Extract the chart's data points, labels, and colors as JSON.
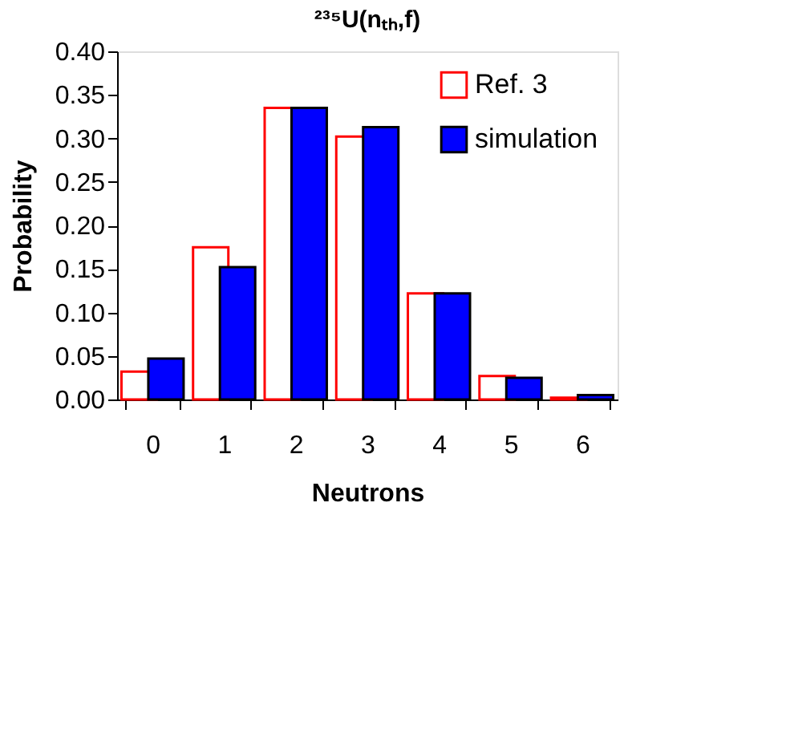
{
  "chart_data": {
    "type": "bar",
    "title": "²³⁵U(nₜₕ,f)",
    "xlabel": "Neutrons",
    "ylabel": "Probability",
    "categories": [
      "0",
      "1",
      "2",
      "3",
      "4",
      "5",
      "6"
    ],
    "series": [
      {
        "name": "Ref. 3",
        "color": "#ff0000",
        "values": [
          0.032,
          0.175,
          0.335,
          0.302,
          0.122,
          0.027,
          0.002
        ]
      },
      {
        "name": "simulation",
        "color": "#0000ff",
        "values": [
          0.047,
          0.152,
          0.335,
          0.313,
          0.122,
          0.025,
          0.005
        ]
      }
    ],
    "ylim": [
      0,
      0.4
    ],
    "yticks": [
      {
        "value": 0,
        "label": "0.00"
      },
      {
        "value": 0.05,
        "label": "0.05"
      },
      {
        "value": 0.1,
        "label": "0.10"
      },
      {
        "value": 0.15,
        "label": "0.15"
      },
      {
        "value": 0.2,
        "label": "0.20"
      },
      {
        "value": 0.25,
        "label": "0.25"
      },
      {
        "value": 0.3,
        "label": "0.30"
      },
      {
        "value": 0.35,
        "label": "0.35"
      },
      {
        "value": 0.4,
        "label": "0.40"
      }
    ],
    "grid": false,
    "legend": "top right"
  }
}
